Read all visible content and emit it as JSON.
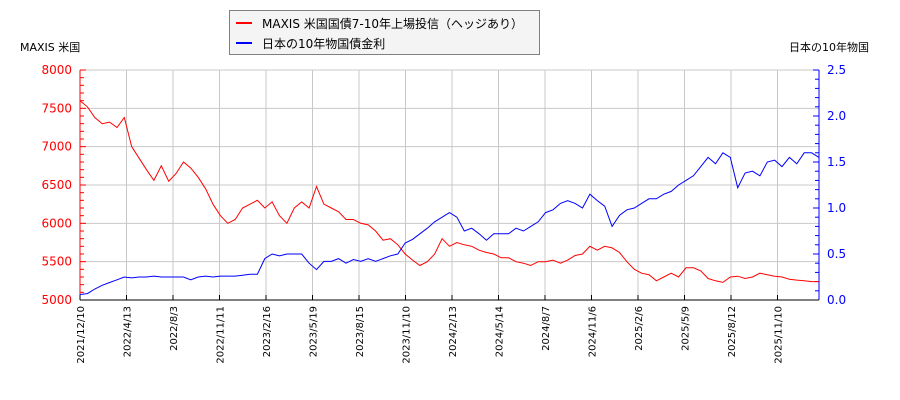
{
  "legend": {
    "series1_label": "MAXIS 米国国債7-10年上場投信（ヘッジあり）",
    "series2_label": "日本の10年物国債金利"
  },
  "axes": {
    "left_title": "MAXIS 米国",
    "right_title": "日本の10年物国",
    "left_ticks": [
      "8000",
      "7500",
      "7000",
      "6500",
      "6000",
      "5500",
      "5000"
    ],
    "right_ticks": [
      "2.5",
      "2.0",
      "1.5",
      "1.0",
      "0.5",
      "0.0"
    ],
    "x_ticks": [
      "2021/12/10",
      "2022/4/13",
      "2022/8/3",
      "2022/11/11",
      "2023/2/16",
      "2023/5/19",
      "2023/8/15",
      "2023/11/10",
      "2024/2/13",
      "2024/5/14",
      "2024/8/7",
      "2024/11/6",
      "2025/2/6",
      "2025/5/9",
      "2025/8/12",
      "2025/11/10"
    ]
  },
  "colors": {
    "series1": "#ff0000",
    "series2": "#0000ff",
    "grid": "#c8c8c8"
  },
  "chart_data": {
    "type": "line",
    "title": "",
    "xlabel": "",
    "ylabel": "MAXIS 米国",
    "y2label": "日本の10年物国",
    "ylim": [
      5000,
      8000
    ],
    "y2lim": [
      0.0,
      2.5
    ],
    "grid": true,
    "legend_position": "top-center",
    "categories": [
      "2021/12/10",
      "2022/4/13",
      "2022/8/3",
      "2022/11/11",
      "2023/2/16",
      "2023/5/19",
      "2023/8/15",
      "2023/11/10",
      "2024/2/13",
      "2024/5/14",
      "2024/8/7",
      "2024/11/6",
      "2025/2/6",
      "2025/5/9",
      "2025/8/12",
      "2025/11/10"
    ],
    "series": [
      {
        "name": "MAXIS 米国国債7-10年上場投信（ヘッジあり）",
        "axis": "left",
        "x_frac": [
          0.0,
          0.01,
          0.02,
          0.03,
          0.04,
          0.05,
          0.06,
          0.07,
          0.08,
          0.09,
          0.1,
          0.11,
          0.12,
          0.13,
          0.14,
          0.15,
          0.16,
          0.17,
          0.18,
          0.19,
          0.2,
          0.21,
          0.22,
          0.23,
          0.24,
          0.25,
          0.26,
          0.27,
          0.28,
          0.29,
          0.3,
          0.31,
          0.32,
          0.33,
          0.34,
          0.35,
          0.36,
          0.37,
          0.38,
          0.39,
          0.4,
          0.41,
          0.42,
          0.43,
          0.44,
          0.45,
          0.46,
          0.47,
          0.48,
          0.49,
          0.5,
          0.51,
          0.52,
          0.53,
          0.54,
          0.55,
          0.56,
          0.57,
          0.58,
          0.59,
          0.6,
          0.61,
          0.62,
          0.63,
          0.64,
          0.65,
          0.66,
          0.67,
          0.68,
          0.69,
          0.7,
          0.71,
          0.72,
          0.73,
          0.74,
          0.75,
          0.76,
          0.77,
          0.78,
          0.79,
          0.8,
          0.81,
          0.82,
          0.83,
          0.84,
          0.85,
          0.86,
          0.87,
          0.88,
          0.89,
          0.9,
          0.91,
          0.92,
          0.93,
          0.94,
          0.95,
          0.96,
          0.97,
          0.98,
          0.99,
          1.0
        ],
        "values": [
          7600,
          7520,
          7380,
          7300,
          7320,
          7250,
          7380,
          7000,
          6850,
          6700,
          6560,
          6750,
          6550,
          6650,
          6800,
          6720,
          6600,
          6450,
          6250,
          6100,
          6000,
          6050,
          6200,
          6250,
          6300,
          6200,
          6280,
          6100,
          6000,
          6200,
          6280,
          6200,
          6480,
          6250,
          6200,
          6150,
          6050,
          6050,
          6000,
          5980,
          5900,
          5780,
          5800,
          5720,
          5600,
          5520,
          5450,
          5500,
          5600,
          5800,
          5700,
          5750,
          5720,
          5700,
          5650,
          5620,
          5600,
          5550,
          5550,
          5500,
          5480,
          5450,
          5500,
          5500,
          5520,
          5480,
          5520,
          5580,
          5600,
          5700,
          5650,
          5700,
          5680,
          5620,
          5500,
          5400,
          5350,
          5330,
          5250,
          5300,
          5350,
          5300,
          5420,
          5420,
          5380,
          5280,
          5250,
          5230,
          5300,
          5310,
          5280,
          5300,
          5350,
          5330,
          5310,
          5300,
          5270,
          5260,
          5250,
          5240,
          5240
        ]
      },
      {
        "name": "日本の10年物国債金利",
        "axis": "right",
        "x_frac": [
          0.0,
          0.01,
          0.02,
          0.03,
          0.04,
          0.05,
          0.06,
          0.07,
          0.08,
          0.09,
          0.1,
          0.11,
          0.12,
          0.13,
          0.14,
          0.15,
          0.16,
          0.17,
          0.18,
          0.19,
          0.2,
          0.21,
          0.22,
          0.23,
          0.24,
          0.25,
          0.26,
          0.27,
          0.28,
          0.29,
          0.3,
          0.31,
          0.32,
          0.33,
          0.34,
          0.35,
          0.36,
          0.37,
          0.38,
          0.39,
          0.4,
          0.41,
          0.42,
          0.43,
          0.44,
          0.45,
          0.46,
          0.47,
          0.48,
          0.49,
          0.5,
          0.51,
          0.52,
          0.53,
          0.54,
          0.55,
          0.56,
          0.57,
          0.58,
          0.59,
          0.6,
          0.61,
          0.62,
          0.63,
          0.64,
          0.65,
          0.66,
          0.67,
          0.68,
          0.69,
          0.7,
          0.71,
          0.72,
          0.73,
          0.74,
          0.75,
          0.76,
          0.77,
          0.78,
          0.79,
          0.8,
          0.81,
          0.82,
          0.83,
          0.84,
          0.85,
          0.86,
          0.87,
          0.88,
          0.89,
          0.9,
          0.91,
          0.92,
          0.93,
          0.94,
          0.95,
          0.96,
          0.97,
          0.98,
          0.99,
          1.0
        ],
        "values": [
          0.06,
          0.07,
          0.12,
          0.16,
          0.19,
          0.22,
          0.25,
          0.24,
          0.25,
          0.25,
          0.26,
          0.25,
          0.25,
          0.25,
          0.25,
          0.22,
          0.25,
          0.26,
          0.25,
          0.26,
          0.26,
          0.26,
          0.27,
          0.28,
          0.28,
          0.45,
          0.5,
          0.48,
          0.5,
          0.5,
          0.5,
          0.4,
          0.33,
          0.42,
          0.42,
          0.45,
          0.4,
          0.44,
          0.42,
          0.45,
          0.42,
          0.45,
          0.48,
          0.5,
          0.62,
          0.66,
          0.72,
          0.78,
          0.85,
          0.9,
          0.95,
          0.9,
          0.75,
          0.78,
          0.72,
          0.65,
          0.72,
          0.72,
          0.72,
          0.78,
          0.75,
          0.8,
          0.85,
          0.95,
          0.98,
          1.05,
          1.08,
          1.05,
          1.0,
          1.15,
          1.08,
          1.02,
          0.8,
          0.92,
          0.98,
          1.0,
          1.05,
          1.1,
          1.1,
          1.15,
          1.18,
          1.25,
          1.3,
          1.35,
          1.45,
          1.55,
          1.48,
          1.6,
          1.55,
          1.22,
          1.38,
          1.4,
          1.35,
          1.5,
          1.52,
          1.45,
          1.55,
          1.48,
          1.6,
          1.6,
          1.55
        ]
      }
    ]
  }
}
